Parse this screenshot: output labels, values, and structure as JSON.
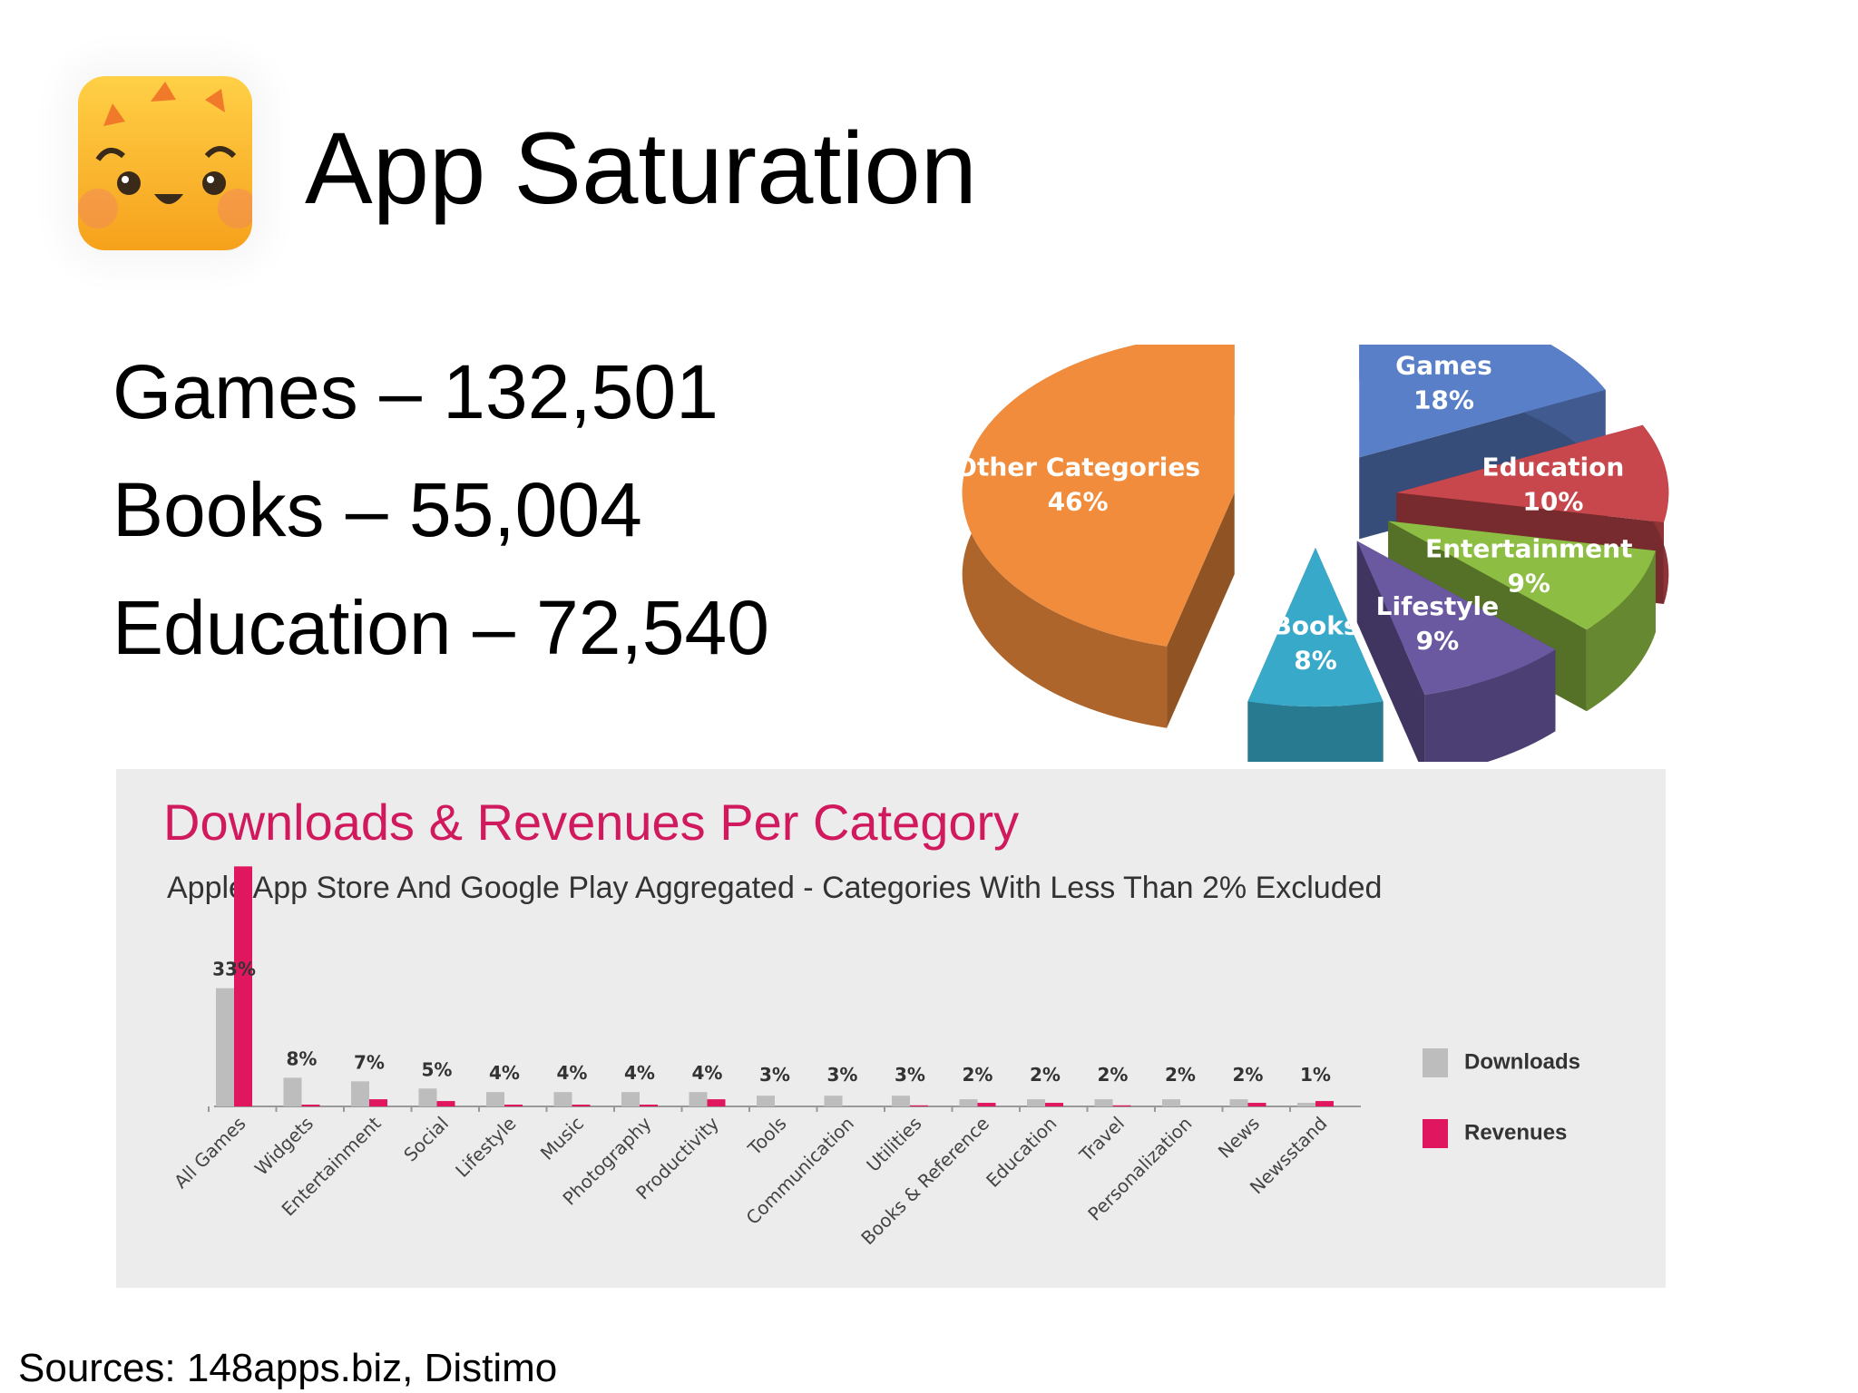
{
  "header": {
    "title": "App Saturation"
  },
  "logo": {
    "icon": "smiling-sun-icon"
  },
  "stats": [
    {
      "label": "Games",
      "sep": "–",
      "value": "132,501"
    },
    {
      "label": "Books",
      "sep": "–",
      "value": "55,004"
    },
    {
      "label": "Education",
      "sep": "–",
      "value": "72,540"
    }
  ],
  "chart_data": [
    {
      "type": "pie",
      "slices": [
        {
          "label": "Games",
          "value": 18,
          "display": "18%",
          "color": "#5a7fc9"
        },
        {
          "label": "Education",
          "value": 10,
          "display": "10%",
          "color": "#c8474c"
        },
        {
          "label": "Entertainment",
          "value": 9,
          "display": "9%",
          "color": "#8dbd42"
        },
        {
          "label": "Lifestyle",
          "value": 9,
          "display": "9%",
          "color": "#6a58a0"
        },
        {
          "label": "Books",
          "value": 8,
          "display": "8%",
          "color": "#38a9c9"
        },
        {
          "label": "Other Categories",
          "value": 46,
          "display": "46%",
          "color": "#f08c3c"
        }
      ],
      "style": "3D exploded"
    },
    {
      "type": "bar",
      "title": "Downloads & Revenues Per Category",
      "subtitle": "Apple App Store And Google Play Aggregated - Categories With Less Than 2% Excluded",
      "categories": [
        "All Games",
        "Widgets",
        "Entertainment",
        "Social",
        "Lifestyle",
        "Music",
        "Photography",
        "Productivity",
        "Tools",
        "Communication",
        "Utilities",
        "Books & Reference",
        "Education",
        "Travel",
        "Personalization",
        "News",
        "Newsstand"
      ],
      "value_labels": [
        "33%",
        "8%",
        "7%",
        "5%",
        "4%",
        "4%",
        "4%",
        "4%",
        "3%",
        "3%",
        "3%",
        "2%",
        "2%",
        "2%",
        "2%",
        "2%",
        "1%"
      ],
      "series": [
        {
          "name": "Downloads",
          "color": "#bdbdbd",
          "values": [
            33,
            8,
            7,
            5,
            4,
            4,
            4,
            4,
            3,
            3,
            3,
            2,
            2,
            2,
            2,
            2,
            1
          ]
        },
        {
          "name": "Revenues",
          "color": "#e0165f",
          "values": [
            67,
            0.5,
            2,
            1.5,
            0.5,
            0.5,
            0.5,
            2,
            0,
            0,
            0.3,
            1,
            1,
            0.3,
            0,
            1,
            1.5
          ]
        }
      ],
      "legend": "right"
    }
  ],
  "footer": {
    "sources": "Sources: 148apps.biz, Distimo"
  }
}
